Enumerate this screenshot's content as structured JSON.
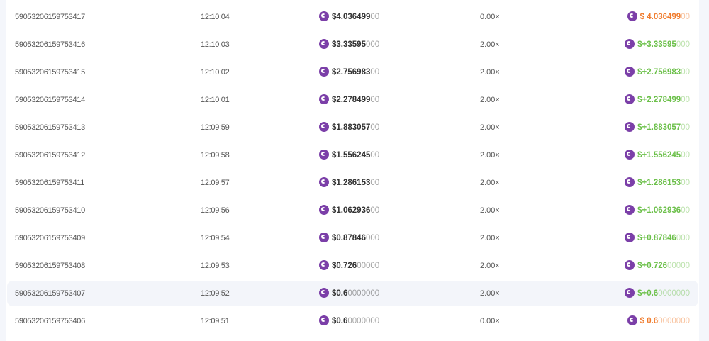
{
  "colors": {
    "win": "#6cc04a",
    "loss": "#f07b2c",
    "coin": "#7b3fa8",
    "highlight": "#f3f5fa"
  },
  "icons": {
    "coin": "currency-coin-icon"
  },
  "rows": [
    {
      "id": "59053206159753417",
      "time": "12:10:04",
      "bet_main": "$4.036499",
      "bet_tail": "00",
      "multiplier": "0.00×",
      "result": "loss",
      "pay_prefix": "$ ",
      "pay_main": "4.036499",
      "pay_tail": "00"
    },
    {
      "id": "59053206159753416",
      "time": "12:10:03",
      "bet_main": "$3.33595",
      "bet_tail": "000",
      "multiplier": "2.00×",
      "result": "win",
      "pay_prefix": "$+",
      "pay_main": "3.33595",
      "pay_tail": "000"
    },
    {
      "id": "59053206159753415",
      "time": "12:10:02",
      "bet_main": "$2.756983",
      "bet_tail": "00",
      "multiplier": "2.00×",
      "result": "win",
      "pay_prefix": "$+",
      "pay_main": "2.756983",
      "pay_tail": "00"
    },
    {
      "id": "59053206159753414",
      "time": "12:10:01",
      "bet_main": "$2.278499",
      "bet_tail": "00",
      "multiplier": "2.00×",
      "result": "win",
      "pay_prefix": "$+",
      "pay_main": "2.278499",
      "pay_tail": "00"
    },
    {
      "id": "59053206159753413",
      "time": "12:09:59",
      "bet_main": "$1.883057",
      "bet_tail": "00",
      "multiplier": "2.00×",
      "result": "win",
      "pay_prefix": "$+",
      "pay_main": "1.883057",
      "pay_tail": "00"
    },
    {
      "id": "59053206159753412",
      "time": "12:09:58",
      "bet_main": "$1.556245",
      "bet_tail": "00",
      "multiplier": "2.00×",
      "result": "win",
      "pay_prefix": "$+",
      "pay_main": "1.556245",
      "pay_tail": "00"
    },
    {
      "id": "59053206159753411",
      "time": "12:09:57",
      "bet_main": "$1.286153",
      "bet_tail": "00",
      "multiplier": "2.00×",
      "result": "win",
      "pay_prefix": "$+",
      "pay_main": "1.286153",
      "pay_tail": "00"
    },
    {
      "id": "59053206159753410",
      "time": "12:09:56",
      "bet_main": "$1.062936",
      "bet_tail": "00",
      "multiplier": "2.00×",
      "result": "win",
      "pay_prefix": "$+",
      "pay_main": "1.062936",
      "pay_tail": "00"
    },
    {
      "id": "59053206159753409",
      "time": "12:09:54",
      "bet_main": "$0.87846",
      "bet_tail": "000",
      "multiplier": "2.00×",
      "result": "win",
      "pay_prefix": "$+",
      "pay_main": "0.87846",
      "pay_tail": "000"
    },
    {
      "id": "59053206159753408",
      "time": "12:09:53",
      "bet_main": "$0.726",
      "bet_tail": "00000",
      "multiplier": "2.00×",
      "result": "win",
      "pay_prefix": "$+",
      "pay_main": "0.726",
      "pay_tail": "00000"
    },
    {
      "id": "59053206159753407",
      "time": "12:09:52",
      "bet_main": "$0.6",
      "bet_tail": "0000000",
      "multiplier": "2.00×",
      "result": "win",
      "pay_prefix": "$+",
      "pay_main": "0.6",
      "pay_tail": "0000000",
      "highlighted": true
    },
    {
      "id": "59053206159753406",
      "time": "12:09:51",
      "bet_main": "$0.6",
      "bet_tail": "0000000",
      "multiplier": "0.00×",
      "result": "loss",
      "pay_prefix": "$ ",
      "pay_main": "0.6",
      "pay_tail": "0000000"
    }
  ]
}
